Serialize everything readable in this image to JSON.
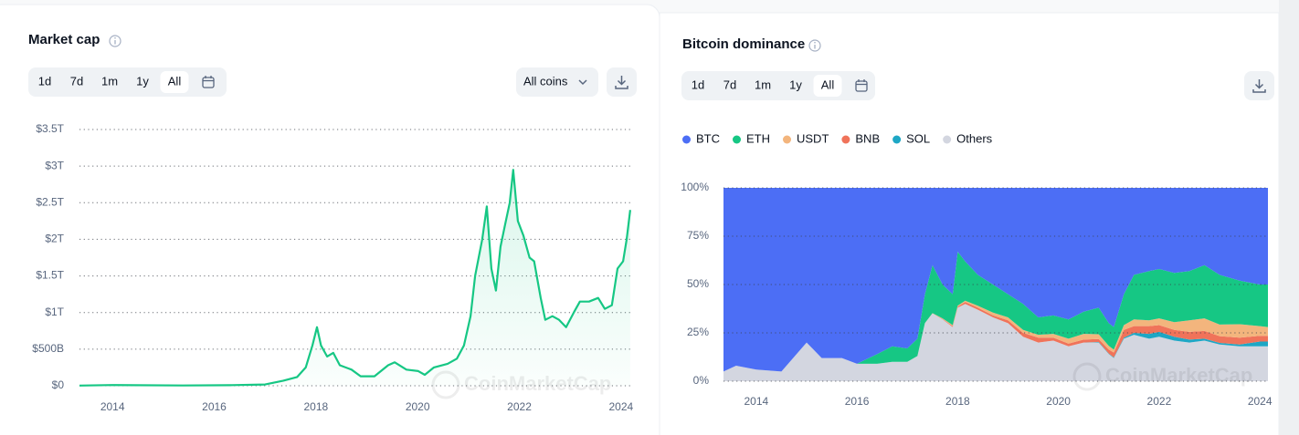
{
  "ui": {
    "left_toolbar": {
      "title": "Market cap",
      "ranges": [
        "1d",
        "7d",
        "1m",
        "1y",
        "All"
      ],
      "coin_filter": "All coins"
    },
    "right_toolbar": {
      "title": "Bitcoin dominance",
      "ranges": [
        "1d",
        "7d",
        "1m",
        "1y",
        "All"
      ]
    }
  },
  "chart_data": [
    {
      "type": "line",
      "title": "Market cap",
      "watermark": "CoinMarketCap",
      "color": "#16c784",
      "area": true,
      "grid": true,
      "x": [
        2013.35,
        2014,
        2015.38,
        2016.28,
        2017.0,
        2017.36,
        2017.63,
        2017.8,
        2017.93,
        2018.02,
        2018.1,
        2018.22,
        2018.34,
        2018.47,
        2018.7,
        2018.88,
        2019.15,
        2019.42,
        2019.55,
        2019.78,
        2020.01,
        2020.14,
        2020.32,
        2020.59,
        2020.77,
        2020.91,
        2021.04,
        2021.13,
        2021.27,
        2021.36,
        2021.45,
        2021.54,
        2021.63,
        2021.72,
        2021.81,
        2021.88,
        2021.97,
        2022.08,
        2022.2,
        2022.29,
        2022.42,
        2022.51,
        2022.65,
        2022.78,
        2022.92,
        2023.07,
        2023.19,
        2023.37,
        2023.55,
        2023.68,
        2023.82,
        2023.93,
        2024.04,
        2024.11,
        2024.18
      ],
      "values": [
        0.002,
        0.01,
        0.004,
        0.007,
        0.018,
        0.07,
        0.12,
        0.25,
        0.55,
        0.8,
        0.55,
        0.4,
        0.45,
        0.28,
        0.22,
        0.13,
        0.13,
        0.28,
        0.32,
        0.22,
        0.2,
        0.15,
        0.25,
        0.3,
        0.37,
        0.55,
        0.95,
        1.5,
        2.0,
        2.45,
        1.6,
        1.3,
        1.9,
        2.2,
        2.5,
        2.95,
        2.25,
        2.05,
        1.75,
        1.7,
        1.2,
        0.9,
        0.95,
        0.9,
        0.8,
        1.0,
        1.15,
        1.15,
        1.2,
        1.05,
        1.1,
        1.6,
        1.7,
        2.0,
        2.4
      ],
      "xlim": [
        2013.35,
        2024.2
      ],
      "xticks": [
        2014,
        2016,
        2018,
        2020,
        2022,
        2024
      ],
      "ylim": [
        0,
        3.5
      ],
      "yticks": [
        {
          "value": 0,
          "label": "$0"
        },
        {
          "value": 0.5,
          "label": "$500B"
        },
        {
          "value": 1,
          "label": "$1T"
        },
        {
          "value": 1.5,
          "label": "$1.5T"
        },
        {
          "value": 2,
          "label": "$2T"
        },
        {
          "value": 2.5,
          "label": "$2.5T"
        },
        {
          "value": 3,
          "label": "$3T"
        },
        {
          "value": 3.5,
          "label": "$3.5T"
        }
      ]
    },
    {
      "type": "area",
      "stacked": true,
      "title": "Bitcoin dominance",
      "watermark": "CoinMarketCap",
      "grid": true,
      "x": [
        2013.35,
        2013.6,
        2014.0,
        2014.5,
        2015.0,
        2015.3,
        2015.7,
        2016.0,
        2016.4,
        2016.7,
        2017.0,
        2017.2,
        2017.35,
        2017.5,
        2017.7,
        2017.9,
        2018.0,
        2018.15,
        2018.4,
        2018.7,
        2019.0,
        2019.3,
        2019.6,
        2019.9,
        2020.2,
        2020.5,
        2020.8,
        2021.0,
        2021.1,
        2021.3,
        2021.5,
        2021.8,
        2022.0,
        2022.3,
        2022.6,
        2022.9,
        2023.2,
        2023.6,
        2024.0,
        2024.16
      ],
      "series": [
        {
          "name": "BTC",
          "color": "#4c6ef5",
          "values": [
            95,
            92,
            94,
            95,
            80,
            88,
            88,
            91,
            86,
            82,
            83,
            78,
            55,
            40,
            50,
            55,
            33,
            38,
            45,
            50,
            55,
            60,
            67,
            66,
            68,
            64,
            62,
            70,
            72,
            55,
            45,
            43,
            42,
            44,
            43,
            40,
            45,
            48,
            50,
            50
          ]
        },
        {
          "name": "ETH",
          "color": "#16c784",
          "values": [
            0,
            0,
            0,
            0,
            0,
            0,
            0,
            0,
            5,
            8,
            7,
            9,
            14.9,
            24.8,
            17.5,
            16,
            27.9,
            20.4,
            16,
            14.5,
            12,
            13.5,
            9,
            9.5,
            10,
            11.5,
            13.7,
            11.7,
            11.7,
            16,
            23,
            25.5,
            25.5,
            25.5,
            25.5,
            27.5,
            25.7,
            22.5,
            21.5,
            22
          ]
        },
        {
          "name": "USDT",
          "color": "#f3b57d",
          "values": [
            0,
            0,
            0,
            0,
            0,
            0,
            0,
            0,
            0,
            0,
            0,
            0,
            0.1,
            0.2,
            0.3,
            0.5,
            0.5,
            0.6,
            1,
            1.5,
            1.5,
            1.5,
            1.5,
            2,
            2.5,
            3,
            2.5,
            2,
            1.5,
            2.5,
            3.5,
            3,
            3.5,
            4,
            6,
            6.5,
            6,
            7,
            5,
            4.5
          ]
        },
        {
          "name": "BNB",
          "color": "#f0735a",
          "values": [
            0,
            0,
            0,
            0,
            0,
            0,
            0,
            0,
            0,
            0,
            0,
            0,
            0,
            0,
            0.2,
            0.5,
            0.6,
            1,
            1,
            1,
            1.5,
            2,
            2.5,
            1.5,
            1.5,
            1.5,
            1.5,
            2,
            2.5,
            4,
            3.5,
            4,
            3.5,
            3.5,
            4,
            4,
            3.5,
            3.5,
            3,
            3
          ]
        },
        {
          "name": "SOL",
          "color": "#1ea7c5",
          "values": [
            0,
            0,
            0,
            0,
            0,
            0,
            0,
            0,
            0,
            0,
            0,
            0,
            0,
            0,
            0,
            0,
            0,
            0,
            0,
            0,
            0,
            0,
            0,
            0,
            0,
            0,
            0.3,
            0.3,
            0.3,
            0.5,
            1,
            2.5,
            2.5,
            2,
            1.5,
            1,
            0.8,
            1,
            2.5,
            2.5
          ]
        },
        {
          "name": "Others",
          "color": "#d3d6e0",
          "values": [
            5,
            8,
            6,
            5,
            20,
            12,
            12,
            9,
            9,
            10,
            10,
            13,
            30,
            35,
            32,
            28,
            38,
            40,
            37,
            33,
            30,
            23,
            20,
            21,
            18,
            20,
            20,
            14,
            12,
            22,
            24,
            22,
            23,
            21,
            20,
            21,
            19,
            18,
            18,
            18
          ]
        }
      ],
      "xlim": [
        2013.35,
        2024.16
      ],
      "xticks": [
        2014,
        2016,
        2018,
        2020,
        2022,
        2024
      ],
      "ylim": [
        0,
        100
      ],
      "yticks": [
        {
          "value": 0,
          "label": "0%"
        },
        {
          "value": 25,
          "label": "25%"
        },
        {
          "value": 50,
          "label": "50%"
        },
        {
          "value": 75,
          "label": "75%"
        },
        {
          "value": 100,
          "label": "100%"
        }
      ]
    }
  ]
}
